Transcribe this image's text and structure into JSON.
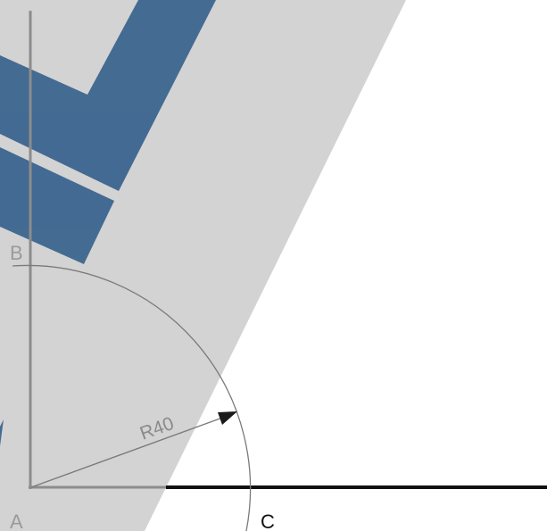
{
  "labels": {
    "point_a": "A",
    "point_b": "B",
    "point_c": "C",
    "radius": "R40"
  },
  "colors": {
    "background": "#ffffff",
    "gray_band": "#d3d3d3",
    "watermark_blue": "#3f6790",
    "baseline": "#111111",
    "axis_in_band": "#8c8c8c",
    "arc": "#7a7a7a",
    "arrow": "#1a1a1a",
    "label_in_band": "#9a9a9a",
    "label_outside": "#111111"
  }
}
